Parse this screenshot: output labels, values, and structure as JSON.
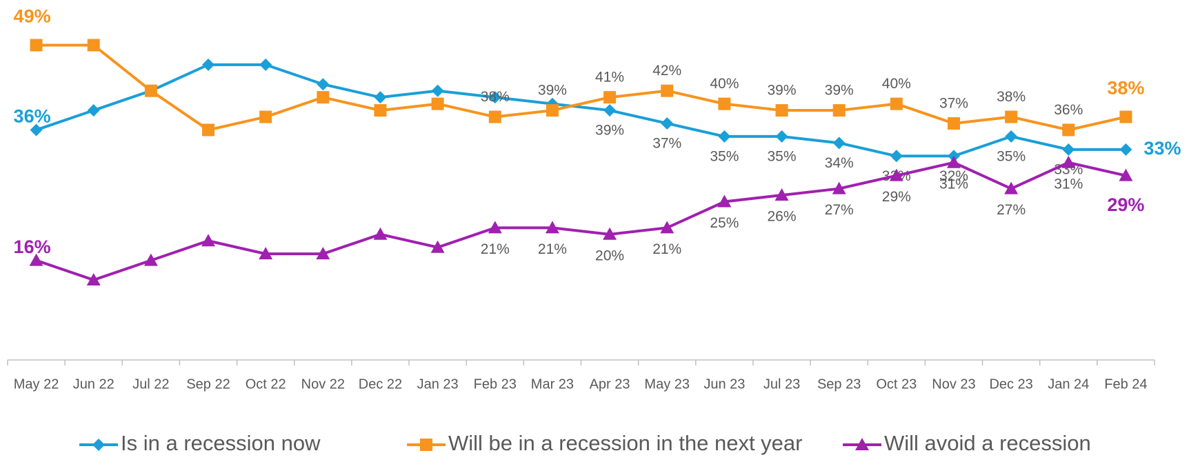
{
  "chart_data": {
    "type": "line",
    "categories": [
      "May 22",
      "Jun 22",
      "Jul 22",
      "Sep 22",
      "Oct 22",
      "Nov 22",
      "Dec 22",
      "Jan 23",
      "Feb 23",
      "Mar 23",
      "Apr 23",
      "May 23",
      "Jun 23",
      "Jul 23",
      "Sep 23",
      "Oct 23",
      "Nov 23",
      "Dec 23",
      "Jan 24",
      "Feb 24"
    ],
    "ylim": [
      0,
      55
    ],
    "series": [
      {
        "name": "Is in a recession now",
        "color": "#1a9fd8",
        "marker": "diamond",
        "values": [
          36,
          39,
          42,
          46,
          46,
          43,
          41,
          42,
          41,
          40,
          39,
          37,
          35,
          35,
          34,
          32,
          32,
          35,
          33,
          33
        ],
        "value_labels": [
          "36%",
          null,
          null,
          null,
          null,
          null,
          null,
          null,
          null,
          null,
          "39%",
          "37%",
          "35%",
          "35%",
          "34%",
          "32%",
          "32%",
          "35%",
          "33%",
          "33%"
        ]
      },
      {
        "name": "Will be in a recession in the next year",
        "color": "#f7941d",
        "marker": "square",
        "values": [
          49,
          49,
          42,
          36,
          38,
          41,
          39,
          40,
          38,
          39,
          41,
          42,
          40,
          39,
          39,
          40,
          37,
          38,
          36,
          38
        ],
        "value_labels": [
          "49%",
          null,
          null,
          null,
          null,
          null,
          null,
          null,
          "38%",
          "39%",
          "41%",
          "42%",
          "40%",
          "39%",
          "39%",
          "40%",
          "37%",
          "38%",
          "36%",
          "38%"
        ]
      },
      {
        "name": "Will avoid a recession",
        "color": "#a020b0",
        "marker": "triangle",
        "values": [
          16,
          13,
          16,
          19,
          17,
          17,
          20,
          18,
          21,
          21,
          20,
          21,
          25,
          26,
          27,
          29,
          31,
          27,
          31,
          29
        ],
        "value_labels": [
          "16%",
          null,
          null,
          null,
          null,
          null,
          null,
          null,
          "21%",
          "21%",
          "20%",
          "21%",
          "25%",
          "26%",
          "27%",
          "29%",
          "31%",
          "27%",
          "31%",
          "29%"
        ]
      }
    ]
  }
}
